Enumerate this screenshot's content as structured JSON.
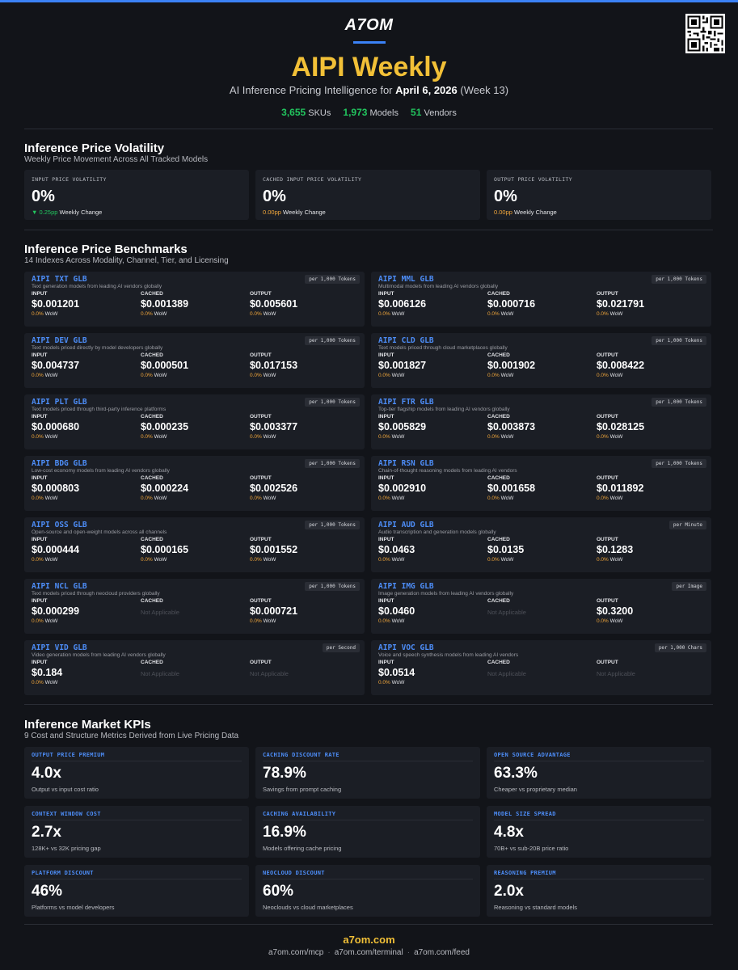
{
  "brand": {
    "logo": "A7OM",
    "accent": "#3b82f6",
    "title_color": "#f2c037"
  },
  "header": {
    "title": "AIPI Weekly",
    "subtitle_prefix": "AI Inference Pricing Intelligence for ",
    "subtitle_date": "April 6, 2026",
    "subtitle_suffix": " (Week 13)",
    "stats": [
      {
        "value": "3,655",
        "label": "SKUs"
      },
      {
        "value": "1,973",
        "label": "Models"
      },
      {
        "value": "51",
        "label": "Vendors"
      }
    ]
  },
  "volatility": {
    "title": "Inference Price Volatility",
    "subtitle": "Weekly Price Movement Across All Tracked Models",
    "cards": [
      {
        "label": "INPUT PRICE VOLATILITY",
        "value": "0%",
        "change": "▼ 0.25pp",
        "change_text": "Weekly Change",
        "change_color": "green"
      },
      {
        "label": "CACHED INPUT PRICE VOLATILITY",
        "value": "0%",
        "change": "0.00pp",
        "change_text": "Weekly Change",
        "change_color": "orange"
      },
      {
        "label": "OUTPUT PRICE VOLATILITY",
        "value": "0%",
        "change": "0.00pp",
        "change_text": "Weekly Change",
        "change_color": "orange"
      }
    ]
  },
  "benchmarks": {
    "title": "Inference Price Benchmarks",
    "subtitle": "14 Indexes Across Modality, Channel, Tier, and Licensing",
    "col_labels": [
      "INPUT",
      "CACHED",
      "OUTPUT"
    ],
    "wow_value": "0.0%",
    "wow_label": "WoW",
    "na_label": "Not Applicable",
    "items": [
      {
        "name": "AIPI TXT GLB",
        "desc": "Text generation models from leading AI vendors globally",
        "unit": "per 1,000 Tokens",
        "input": "$0.001201",
        "cached": "$0.001389",
        "output": "$0.005601"
      },
      {
        "name": "AIPI MML GLB",
        "desc": "Multimodal models from leading AI vendors globally",
        "unit": "per 1,000 Tokens",
        "input": "$0.006126",
        "cached": "$0.000716",
        "output": "$0.021791"
      },
      {
        "name": "AIPI DEV GLB",
        "desc": "Text models priced directly by model developers globally",
        "unit": "per 1,000 Tokens",
        "input": "$0.004737",
        "cached": "$0.000501",
        "output": "$0.017153"
      },
      {
        "name": "AIPI CLD GLB",
        "desc": "Text models priced through cloud marketplaces globally",
        "unit": "per 1,000 Tokens",
        "input": "$0.001827",
        "cached": "$0.001902",
        "output": "$0.008422"
      },
      {
        "name": "AIPI PLT GLB",
        "desc": "Text models priced through third-party inference platforms",
        "unit": "per 1,000 Tokens",
        "input": "$0.000680",
        "cached": "$0.000235",
        "output": "$0.003377"
      },
      {
        "name": "AIPI FTR GLB",
        "desc": "Top-tier flagship models from leading AI vendors globally",
        "unit": "per 1,000 Tokens",
        "input": "$0.005829",
        "cached": "$0.003873",
        "output": "$0.028125"
      },
      {
        "name": "AIPI BDG GLB",
        "desc": "Low-cost economy models from leading AI vendors globally",
        "unit": "per 1,000 Tokens",
        "input": "$0.000803",
        "cached": "$0.000224",
        "output": "$0.002526"
      },
      {
        "name": "AIPI RSN GLB",
        "desc": "Chain-of-thought reasoning models from leading AI vendors",
        "unit": "per 1,000 Tokens",
        "input": "$0.002910",
        "cached": "$0.001658",
        "output": "$0.011892"
      },
      {
        "name": "AIPI OSS GLB",
        "desc": "Open-source and open-weight models across all channels",
        "unit": "per 1,000 Tokens",
        "input": "$0.000444",
        "cached": "$0.000165",
        "output": "$0.001552"
      },
      {
        "name": "AIPI AUD GLB",
        "desc": "Audio transcription and generation models globally",
        "unit": "per Minute",
        "input": "$0.0463",
        "cached": "$0.0135",
        "output": "$0.1283"
      },
      {
        "name": "AIPI NCL GLB",
        "desc": "Text models priced through neocloud providers globally",
        "unit": "per 1,000 Tokens",
        "input": "$0.000299",
        "cached": null,
        "output": "$0.000721"
      },
      {
        "name": "AIPI IMG GLB",
        "desc": "Image generation models from leading AI vendors globally",
        "unit": "per Image",
        "input": "$0.0460",
        "cached": null,
        "output": "$0.3200"
      },
      {
        "name": "AIPI VID GLB",
        "desc": "Video generation models from leading AI vendors globally",
        "unit": "per Second",
        "input": "$0.184",
        "cached": null,
        "output": null
      },
      {
        "name": "AIPI VOC GLB",
        "desc": "Voice and speech synthesis models from leading AI vendors",
        "unit": "per 1,000 Chars",
        "input": "$0.0514",
        "cached": null,
        "output": null
      }
    ]
  },
  "kpis": {
    "title": "Inference Market KPIs",
    "subtitle": "9 Cost and Structure Metrics Derived from Live Pricing Data",
    "items": [
      {
        "label": "OUTPUT PRICE PREMIUM",
        "value": "4.0x",
        "desc": "Output vs input cost ratio"
      },
      {
        "label": "CACHING DISCOUNT RATE",
        "value": "78.9%",
        "desc": "Savings from prompt caching"
      },
      {
        "label": "OPEN SOURCE ADVANTAGE",
        "value": "63.3%",
        "desc": "Cheaper vs proprietary median"
      },
      {
        "label": "CONTEXT WINDOW COST",
        "value": "2.7x",
        "desc": "128K+ vs 32K pricing gap"
      },
      {
        "label": "CACHING AVAILABILITY",
        "value": "16.9%",
        "desc": "Models offering cache pricing"
      },
      {
        "label": "MODEL SIZE SPREAD",
        "value": "4.8x",
        "desc": "70B+ vs sub-20B price ratio"
      },
      {
        "label": "PLATFORM DISCOUNT",
        "value": "46%",
        "desc": "Platforms vs model developers"
      },
      {
        "label": "NEOCLOUD DISCOUNT",
        "value": "60%",
        "desc": "Neoclouds vs cloud marketplaces"
      },
      {
        "label": "REASONING PREMIUM",
        "value": "2.0x",
        "desc": "Reasoning vs standard models"
      }
    ]
  },
  "footer": {
    "brand": "a7om.com",
    "links": [
      "a7om.com/mcp",
      "a7om.com/terminal",
      "a7om.com/feed"
    ]
  }
}
